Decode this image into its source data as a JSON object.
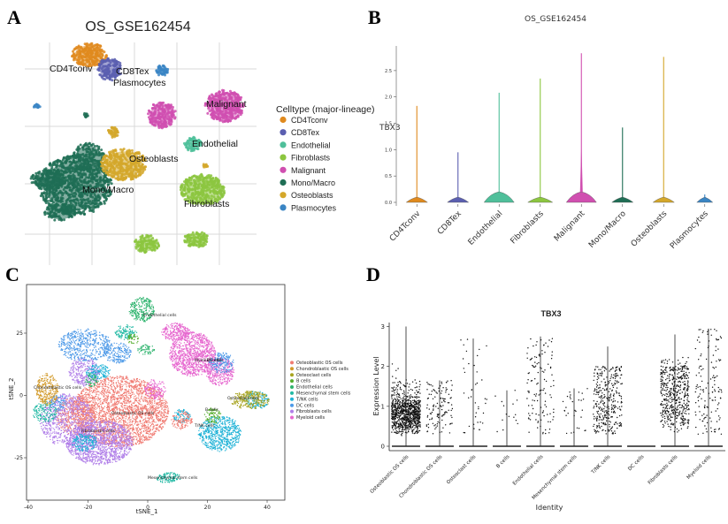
{
  "panel_labels": [
    "A",
    "B",
    "C",
    "D"
  ],
  "chart_data": [
    {
      "type": "scatter",
      "panel": "A",
      "title": "OS_GSE162454",
      "legend_title": "Celltype (major-lineage)",
      "legend_placement": "right",
      "grid": true,
      "clusters": [
        {
          "name": "CD4Tconv",
          "color": "#e08a1e",
          "label": "CD4Tconv"
        },
        {
          "name": "CD8Tex",
          "color": "#5b5fb0",
          "label": "CD8Tex"
        },
        {
          "name": "Endothelial",
          "color": "#4fbf9a",
          "label": "Endothelial"
        },
        {
          "name": "Fibroblasts",
          "color": "#8cc63f",
          "label": "Fibroblasts"
        },
        {
          "name": "Malignant",
          "color": "#d04fb0",
          "label": "Malignant"
        },
        {
          "name": "Mono/Macro",
          "color": "#1f6e55",
          "label": "Mono/Macro"
        },
        {
          "name": "Osteoblasts",
          "color": "#d4a72a",
          "label": "Osteoblasts"
        },
        {
          "name": "Plasmocytes",
          "color": "#3a85c4",
          "label": "Plasmocytes"
        }
      ]
    },
    {
      "type": "violin",
      "panel": "B",
      "title": "OS_GSE162454",
      "ylabel": "TBX3",
      "ylim": [
        0,
        2.8
      ],
      "yticks": [
        "0.0",
        "0.5",
        "1.0",
        "1.5",
        "2.0",
        "2.5"
      ],
      "categories": [
        "CD4Tconv",
        "CD8Tex",
        "Endothelial",
        "Fibroblasts",
        "Malignant",
        "Mono/Macro",
        "Osteoblasts",
        "Plasmocytes"
      ],
      "max_values": [
        1.83,
        0.95,
        2.08,
        2.35,
        2.83,
        1.42,
        2.76,
        0.15
      ],
      "colors": [
        "#e08a1e",
        "#5b5fb0",
        "#4fbf9a",
        "#8cc63f",
        "#d04fb0",
        "#1f6e55",
        "#d4a72a",
        "#3a85c4"
      ]
    },
    {
      "type": "scatter",
      "panel": "C",
      "xlabel": "tSNE_1",
      "ylabel": "tSNE_2",
      "xticks": [
        "-40",
        "-20",
        "0",
        "20",
        "40"
      ],
      "yticks": [
        "25",
        "0",
        "-25"
      ],
      "xlim": [
        -40,
        45
      ],
      "ylim": [
        -38,
        42
      ],
      "legend_placement": "right",
      "clusters": [
        {
          "name": "Osteoblastic OS cells",
          "color": "#f07b72"
        },
        {
          "name": "Chondroblastic OS cells",
          "color": "#d29a2a"
        },
        {
          "name": "Osteoclast cells",
          "color": "#a8a420"
        },
        {
          "name": "B cells",
          "color": "#55ad2c"
        },
        {
          "name": "Endothelial cells",
          "color": "#2fb46e"
        },
        {
          "name": "Mesenchymal stem cells",
          "color": "#22b9a4"
        },
        {
          "name": "T/NK cells",
          "color": "#1fb2d6"
        },
        {
          "name": "DC cells",
          "color": "#4e9ae8"
        },
        {
          "name": "Fibroblasts cells",
          "color": "#b07ee8"
        },
        {
          "name": "Myeloid cells",
          "color": "#e768cf"
        }
      ],
      "cluster_labels": [
        {
          "text": "Endothelial cells"
        },
        {
          "text": "Myeloid cells"
        },
        {
          "text": "DC cells"
        },
        {
          "text": "Chondroblastic OS cells"
        },
        {
          "text": "Osteoblastic OS cells"
        },
        {
          "text": "Osteoclast cells"
        },
        {
          "text": "B cells"
        },
        {
          "text": "T/NK cells"
        },
        {
          "text": "Fibroblastic cells"
        },
        {
          "text": "Mesenchymal stem cells"
        }
      ]
    },
    {
      "type": "violin",
      "panel": "D",
      "title": "TBX3",
      "xlabel": "Identity",
      "ylabel": "Expression Level",
      "yticks": [
        "0",
        "1",
        "2",
        "3"
      ],
      "ylim": [
        0,
        3.1
      ],
      "categories": [
        "Osteoblastic OS cells",
        "Chondroblastic OS cells",
        "Osteoclast cells",
        "B cells",
        "Endothelial cells",
        "Mesenchymal stem cells",
        "T/NK cells",
        "DC cells",
        "Fibroblasts cells",
        "Myeloid cells"
      ],
      "max_values": [
        3.0,
        1.65,
        2.7,
        1.4,
        2.75,
        1.45,
        2.5,
        0.0,
        2.8,
        2.95
      ]
    }
  ]
}
